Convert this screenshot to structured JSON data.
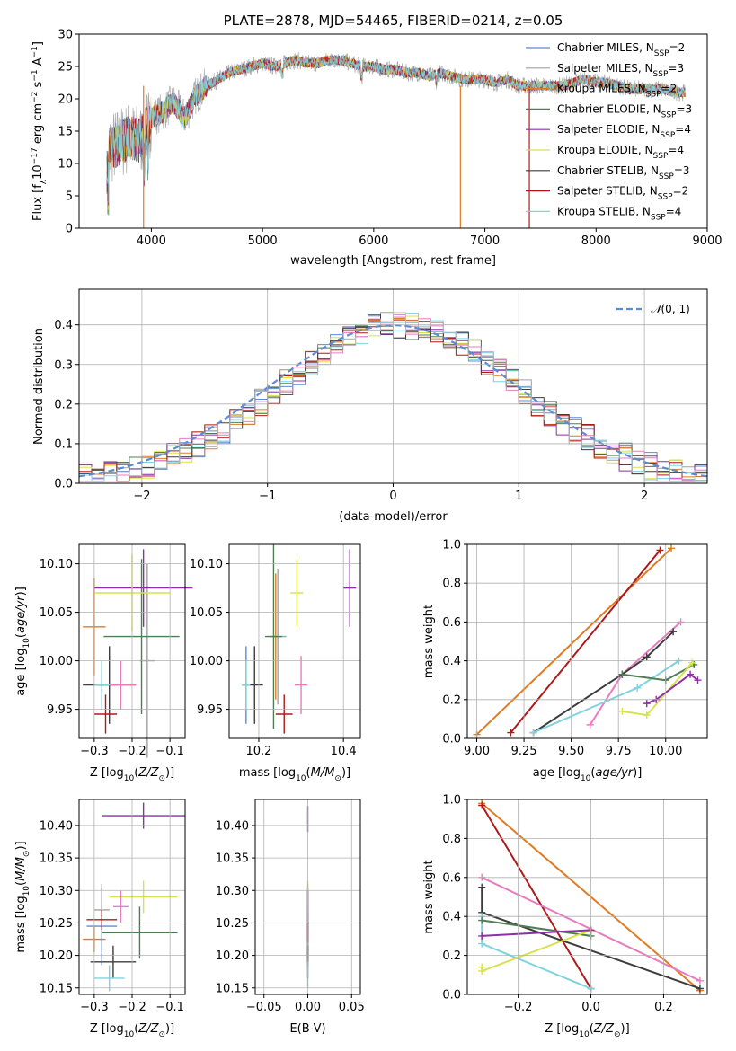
{
  "chart_data": [
    {
      "type": "line",
      "panel": "spectrum",
      "title": "PLATE=2878, MJD=54465, FIBERID=0214, z=0.05",
      "xlabel": "wavelength [Angstrom, rest frame]",
      "ylabel": "Flux [fλ10⁻¹⁷ erg cm⁻² s⁻¹ A⁻¹]",
      "xlim": [
        3350,
        9000
      ],
      "ylim": [
        0,
        30
      ],
      "xticks": [
        "4000",
        "5000",
        "6000",
        "7000",
        "8000",
        "9000"
      ],
      "yticks": [
        "0",
        "5",
        "10",
        "15",
        "20",
        "25",
        "30"
      ],
      "grid": false,
      "legend_position": "upper right",
      "series": [
        {
          "name": "Chabrier MILES, NSSP=2",
          "color": "#5b8bd6"
        },
        {
          "name": "Salpeter MILES, NSSP=3",
          "color": "#a0a0a0"
        },
        {
          "name": "Kroupa MILES, NSSP=2",
          "color": "#e07b23"
        },
        {
          "name": "Chabrier ELODIE, NSSP=3",
          "color": "#4e7d54"
        },
        {
          "name": "Salpeter ELODIE, NSSP=4",
          "color": "#8e2fa8"
        },
        {
          "name": "Kroupa ELODIE, NSSP=4",
          "color": "#d8e24c"
        },
        {
          "name": "Chabrier STELIB, NSSP=3",
          "color": "#3d3d3d"
        },
        {
          "name": "Salpeter STELIB, NSSP=2",
          "color": "#b01818"
        },
        {
          "name": "Kroupa STELIB, NSSP=4",
          "color": "#7ed3df"
        }
      ],
      "spectrum_shape": {
        "x": [
          3600,
          3700,
          3800,
          3900,
          4000,
          4100,
          4200,
          4300,
          4400,
          4500,
          4600,
          4700,
          4800,
          4900,
          5000,
          5100,
          5200,
          5300,
          5400,
          5500,
          5600,
          5700,
          5800,
          5900,
          6000,
          6100,
          6200,
          6300,
          6400,
          6500,
          6600,
          6700,
          6800,
          6900,
          7000,
          7100,
          7200,
          7300,
          7400,
          7500,
          7600,
          7700,
          7800,
          7900,
          8000,
          8100,
          8200,
          8300,
          8400,
          8500,
          8600,
          8700,
          8800
        ],
        "y": [
          12,
          13,
          14,
          13.5,
          17,
          18,
          19.5,
          17,
          20.5,
          22,
          23,
          24,
          24.5,
          25,
          25.5,
          25,
          25.5,
          26,
          25.5,
          25.5,
          26,
          26,
          25.5,
          25,
          25,
          24.5,
          24.5,
          24,
          24,
          23.5,
          24,
          23.5,
          23,
          23,
          23,
          22.5,
          23,
          22,
          22,
          22,
          22,
          22,
          22.5,
          23,
          22.5,
          22.5,
          22,
          21.5,
          21.5,
          21.5,
          21.5,
          21,
          21
        ]
      }
    },
    {
      "type": "bar",
      "panel": "residual-histogram",
      "xlabel": "(data-model)/error",
      "ylabel": "Normed distribution",
      "xlim": [
        -2.5,
        2.5
      ],
      "ylim": [
        0,
        0.49
      ],
      "xticks": [
        "-2",
        "-1",
        "0",
        "1",
        "2"
      ],
      "yticks": [
        "0.0",
        "0.1",
        "0.2",
        "0.3",
        "0.4"
      ],
      "grid": true,
      "legend": "𝒩(0,1)",
      "legend_position": "upper right",
      "normal_color": "#5b8bd6"
    },
    {
      "type": "scatter",
      "panel": "age-vs-Z",
      "xlabel": "Z [log10(Z/Z⊙)]",
      "ylabel": "age [log10(age/yr)]",
      "xlim": [
        -0.34,
        -0.06
      ],
      "ylim": [
        9.92,
        10.12
      ],
      "xticks": [
        "-0.3",
        "-0.2",
        "-0.1"
      ],
      "yticks": [
        "9.95",
        "10.00",
        "10.05",
        "10.10"
      ],
      "grid": true,
      "points": [
        {
          "x": -0.28,
          "xe": 0.02,
          "y": 9.975,
          "ye": 0.025,
          "color": "#5b8bd6"
        },
        {
          "x": -0.16,
          "xe": 0.02,
          "y": 10.0,
          "ye": 0.1,
          "color": "#a0a0a0"
        },
        {
          "x": -0.3,
          "xe": 0.03,
          "y": 10.035,
          "ye": 0.05,
          "color": "#e07b23"
        },
        {
          "x": -0.175,
          "xe": 0.1,
          "y": 10.025,
          "ye": 0.08,
          "color": "#4e7d54"
        },
        {
          "x": -0.17,
          "xe": 0.13,
          "y": 10.075,
          "ye": 0.04,
          "color": "#8e2fa8"
        },
        {
          "x": -0.2,
          "xe": 0.1,
          "y": 10.07,
          "ye": 0.04,
          "color": "#d8e24c"
        },
        {
          "x": -0.26,
          "xe": 0.07,
          "y": 9.975,
          "ye": 0.04,
          "color": "#3d3d3d"
        },
        {
          "x": -0.27,
          "xe": 0.03,
          "y": 9.945,
          "ye": 0.02,
          "color": "#b01818"
        },
        {
          "x": -0.23,
          "xe": 0.04,
          "y": 9.975,
          "ye": 0.025,
          "color": "#e87cbf"
        },
        {
          "x": -0.28,
          "xe": 0.02,
          "y": 9.975,
          "ye": 0.025,
          "color": "#7ed3df"
        }
      ]
    },
    {
      "type": "scatter",
      "panel": "age-vs-mass",
      "xlabel": "mass [log10(M/M⊙)]",
      "ylabel": "",
      "xlim": [
        10.13,
        10.44
      ],
      "ylim": [
        9.92,
        10.12
      ],
      "xticks": [
        "10.2",
        "10.4"
      ],
      "yticks": [
        "9.95",
        "10.00",
        "10.05",
        "10.10"
      ],
      "grid": true,
      "points": [
        {
          "x": 10.17,
          "xe": 0.01,
          "y": 9.975,
          "ye": 0.04,
          "color": "#5b8bd6"
        },
        {
          "x": 10.245,
          "xe": 0.02,
          "y": 10.025,
          "ye": 0.07,
          "color": "#a0a0a0"
        },
        {
          "x": 10.24,
          "xe": 0.01,
          "y": 10.025,
          "ye": 0.065,
          "color": "#e07b23"
        },
        {
          "x": 10.235,
          "xe": 0.02,
          "y": 10.025,
          "ye": 0.095,
          "color": "#4e7d54"
        },
        {
          "x": 10.415,
          "xe": 0.015,
          "y": 10.075,
          "ye": 0.04,
          "color": "#8e2fa8"
        },
        {
          "x": 10.29,
          "xe": 0.015,
          "y": 10.07,
          "ye": 0.035,
          "color": "#d8e24c"
        },
        {
          "x": 10.19,
          "xe": 0.02,
          "y": 9.975,
          "ye": 0.04,
          "color": "#3d3d3d"
        },
        {
          "x": 10.26,
          "xe": 0.02,
          "y": 9.945,
          "ye": 0.02,
          "color": "#b01818"
        },
        {
          "x": 10.3,
          "xe": 0.015,
          "y": 9.975,
          "ye": 0.03,
          "color": "#e87cbf"
        },
        {
          "x": 10.17,
          "xe": 0.01,
          "y": 9.975,
          "ye": 0.025,
          "color": "#7ed3df"
        }
      ]
    },
    {
      "type": "line",
      "panel": "mass-weight-vs-age",
      "xlabel": "age [log10(age/yr)]",
      "ylabel": "mass weight",
      "xlim": [
        8.95,
        10.22
      ],
      "ylim": [
        0,
        1.0
      ],
      "xticks": [
        "9.00",
        "9.25",
        "9.50",
        "9.75",
        "10.00"
      ],
      "yticks": [
        "0.0",
        "0.2",
        "0.4",
        "0.6",
        "0.8",
        "1.0"
      ],
      "grid": true,
      "series": [
        {
          "color": "#e07b23",
          "x": [
            9.0,
            10.03
          ],
          "y": [
            0.02,
            0.98
          ]
        },
        {
          "color": "#b01818",
          "x": [
            9.18,
            9.97
          ],
          "y": [
            0.03,
            0.97
          ]
        },
        {
          "color": "#e87cbf",
          "x": [
            9.6,
            9.77,
            10.08
          ],
          "y": [
            0.07,
            0.33,
            0.6
          ]
        },
        {
          "color": "#3d3d3d",
          "x": [
            9.3,
            9.77,
            9.9,
            10.04
          ],
          "y": [
            0.03,
            0.33,
            0.42,
            0.55
          ]
        },
        {
          "color": "#7ed3df",
          "x": [
            9.3,
            9.85,
            10.07
          ],
          "y": [
            0.03,
            0.26,
            0.4
          ]
        },
        {
          "color": "#4e7d54",
          "x": [
            9.77,
            10.0,
            10.15
          ],
          "y": [
            0.33,
            0.3,
            0.38
          ]
        },
        {
          "color": "#d8e24c",
          "x": [
            9.77,
            9.9,
            10.14
          ],
          "y": [
            0.14,
            0.12,
            0.39
          ]
        },
        {
          "color": "#8e2fa8",
          "x": [
            9.9,
            9.95,
            10.13,
            10.17
          ],
          "y": [
            0.18,
            0.2,
            0.33,
            0.3
          ]
        }
      ]
    },
    {
      "type": "scatter",
      "panel": "mass-vs-Z",
      "xlabel": "Z [log10(Z/Z⊙)]",
      "ylabel": "mass [log10(M/M⊙)]",
      "xlim": [
        -0.34,
        -0.06
      ],
      "ylim": [
        10.14,
        10.44
      ],
      "xticks": [
        "-0.3",
        "-0.2",
        "-0.1"
      ],
      "yticks": [
        "10.15",
        "10.20",
        "10.25",
        "10.30",
        "10.35",
        "10.40"
      ],
      "grid": true,
      "points": [
        {
          "x": -0.28,
          "xe": 0.04,
          "y": 10.245,
          "ye": 0.06,
          "color": "#5b8bd6"
        },
        {
          "x": -0.28,
          "xe": 0.02,
          "y": 10.27,
          "ye": 0.04,
          "color": "#a0a0a0"
        },
        {
          "x": -0.3,
          "xe": 0.03,
          "y": 10.225,
          "ye": 0.02,
          "color": "#e07b23"
        },
        {
          "x": -0.18,
          "xe": 0.1,
          "y": 10.235,
          "ye": 0.04,
          "color": "#4e7d54"
        },
        {
          "x": -0.17,
          "xe": 0.11,
          "y": 10.415,
          "ye": 0.02,
          "color": "#8e2fa8"
        },
        {
          "x": -0.17,
          "xe": 0.09,
          "y": 10.29,
          "ye": 0.025,
          "color": "#d8e24c"
        },
        {
          "x": -0.25,
          "xe": 0.06,
          "y": 10.19,
          "ye": 0.025,
          "color": "#3d3d3d"
        },
        {
          "x": -0.28,
          "xe": 0.04,
          "y": 10.255,
          "ye": 0.015,
          "color": "#b01818"
        },
        {
          "x": -0.23,
          "xe": 0.02,
          "y": 10.275,
          "ye": 0.025,
          "color": "#e87cbf"
        },
        {
          "x": -0.26,
          "xe": 0.04,
          "y": 10.165,
          "ye": 0.02,
          "color": "#7ed3df"
        }
      ]
    },
    {
      "type": "scatter",
      "panel": "mass-vs-EBV",
      "xlabel": "E(B-V)",
      "ylabel": "",
      "xlim": [
        -0.06,
        0.06
      ],
      "ylim": [
        10.14,
        10.44
      ],
      "xticks": [
        "-0.05",
        "0.00",
        "0.05"
      ],
      "yticks": [
        "10.15",
        "10.20",
        "10.25",
        "10.30",
        "10.35",
        "10.40"
      ],
      "grid": true,
      "points": [
        {
          "x": 0,
          "y": 10.245,
          "ye": 0.06,
          "color": "#5b8bd6"
        },
        {
          "x": 0,
          "y": 10.27,
          "ye": 0.04,
          "color": "#a0a0a0"
        },
        {
          "x": 0,
          "y": 10.24,
          "ye": 0.06,
          "color": "#e07b23"
        },
        {
          "x": 0,
          "y": 10.235,
          "ye": 0.04,
          "color": "#4e7d54"
        },
        {
          "x": 0,
          "y": 10.41,
          "ye": 0.02,
          "color": "#8e2fa8"
        },
        {
          "x": 0,
          "y": 10.29,
          "ye": 0.025,
          "color": "#d8e24c"
        },
        {
          "x": 0,
          "y": 10.19,
          "ye": 0.025,
          "color": "#3d3d3d"
        },
        {
          "x": 0,
          "y": 10.26,
          "ye": 0.04,
          "color": "#b01818"
        },
        {
          "x": 0,
          "y": 10.275,
          "ye": 0.025,
          "color": "#e87cbf"
        },
        {
          "x": 0,
          "y": 10.17,
          "ye": 0.02,
          "color": "#7ed3df"
        }
      ]
    },
    {
      "type": "line",
      "panel": "mass-weight-vs-Z",
      "xlabel": "Z [log10(Z/Z⊙)]",
      "ylabel": "mass weight",
      "xlim": [
        -0.34,
        0.32
      ],
      "ylim": [
        0,
        1.0
      ],
      "xticks": [
        "-0.2",
        "0.0",
        "0.2"
      ],
      "yticks": [
        "0.0",
        "0.2",
        "0.4",
        "0.6",
        "0.8",
        "1.0"
      ],
      "grid": true,
      "series": [
        {
          "color": "#e07b23",
          "x": [
            -0.3,
            0.3
          ],
          "y": [
            0.98,
            0.02
          ]
        },
        {
          "color": "#b01818",
          "x": [
            -0.3,
            0.0
          ],
          "y": [
            0.97,
            0.03
          ]
        },
        {
          "color": "#e87cbf",
          "x": [
            -0.3,
            0.3
          ],
          "y": [
            0.6,
            0.07
          ]
        },
        {
          "color": "#3d3d3d",
          "x": [
            -0.3,
            -0.3,
            0.3
          ],
          "y": [
            0.55,
            0.42,
            0.03
          ]
        },
        {
          "color": "#7ed3df",
          "x": [
            -0.3,
            -0.3,
            0.0
          ],
          "y": [
            0.4,
            0.26,
            0.03
          ]
        },
        {
          "color": "#4e7d54",
          "x": [
            -0.3,
            0.0
          ],
          "y": [
            0.38,
            0.3
          ]
        },
        {
          "color": "#d8e24c",
          "x": [
            -0.3,
            -0.3,
            0.0
          ],
          "y": [
            0.14,
            0.12,
            0.33
          ]
        },
        {
          "color": "#8e2fa8",
          "x": [
            -0.3,
            0.0
          ],
          "y": [
            0.3,
            0.33
          ]
        }
      ]
    }
  ]
}
